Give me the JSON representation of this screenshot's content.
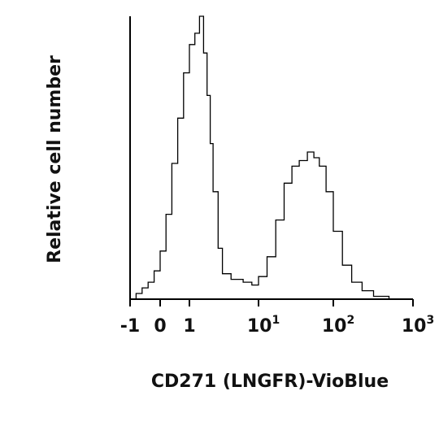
{
  "chart_data": {
    "type": "area",
    "xlabel": "CD271 (LNGFR)-VioBlue",
    "ylabel": "Relative cell number",
    "xscale": "biexponential",
    "xlim": [
      -1,
      1000
    ],
    "ylim": [
      0,
      1
    ],
    "grid": false,
    "legend": "none",
    "ticks": [
      {
        "value": -1,
        "base": "-1",
        "exp": ""
      },
      {
        "value": 0,
        "base": "0",
        "exp": ""
      },
      {
        "value": 1,
        "base": "1",
        "exp": ""
      },
      {
        "value": 10,
        "base": "10",
        "exp": "1"
      },
      {
        "value": 100,
        "base": "10",
        "exp": "2"
      },
      {
        "value": 1000,
        "base": "10",
        "exp": "3"
      }
    ],
    "series": [
      {
        "line_color": "#000000",
        "points": [
          [
            -1.0,
            0.0
          ],
          [
            -0.8,
            0.02
          ],
          [
            -0.6,
            0.04
          ],
          [
            -0.4,
            0.06
          ],
          [
            -0.2,
            0.1
          ],
          [
            0.0,
            0.17
          ],
          [
            0.2,
            0.3
          ],
          [
            0.4,
            0.48
          ],
          [
            0.6,
            0.64
          ],
          [
            0.8,
            0.8
          ],
          [
            1.0,
            0.9
          ],
          [
            1.2,
            0.94
          ],
          [
            1.4,
            1.0
          ],
          [
            1.6,
            0.87
          ],
          [
            1.8,
            0.72
          ],
          [
            2.0,
            0.55
          ],
          [
            2.2,
            0.38
          ],
          [
            2.6,
            0.18
          ],
          [
            3.0,
            0.09
          ],
          [
            4.0,
            0.07
          ],
          [
            6.0,
            0.06
          ],
          [
            8.0,
            0.05
          ],
          [
            10.0,
            0.08
          ],
          [
            13.0,
            0.15
          ],
          [
            17.0,
            0.28
          ],
          [
            22.0,
            0.41
          ],
          [
            28.0,
            0.47
          ],
          [
            35.0,
            0.49
          ],
          [
            45.0,
            0.52
          ],
          [
            55.0,
            0.5
          ],
          [
            65.0,
            0.47
          ],
          [
            80.0,
            0.38
          ],
          [
            100.0,
            0.24
          ],
          [
            130.0,
            0.12
          ],
          [
            170.0,
            0.06
          ],
          [
            230.0,
            0.03
          ],
          [
            320.0,
            0.01
          ],
          [
            500.0,
            0.0
          ],
          [
            1000.0,
            0.0
          ]
        ]
      }
    ]
  }
}
